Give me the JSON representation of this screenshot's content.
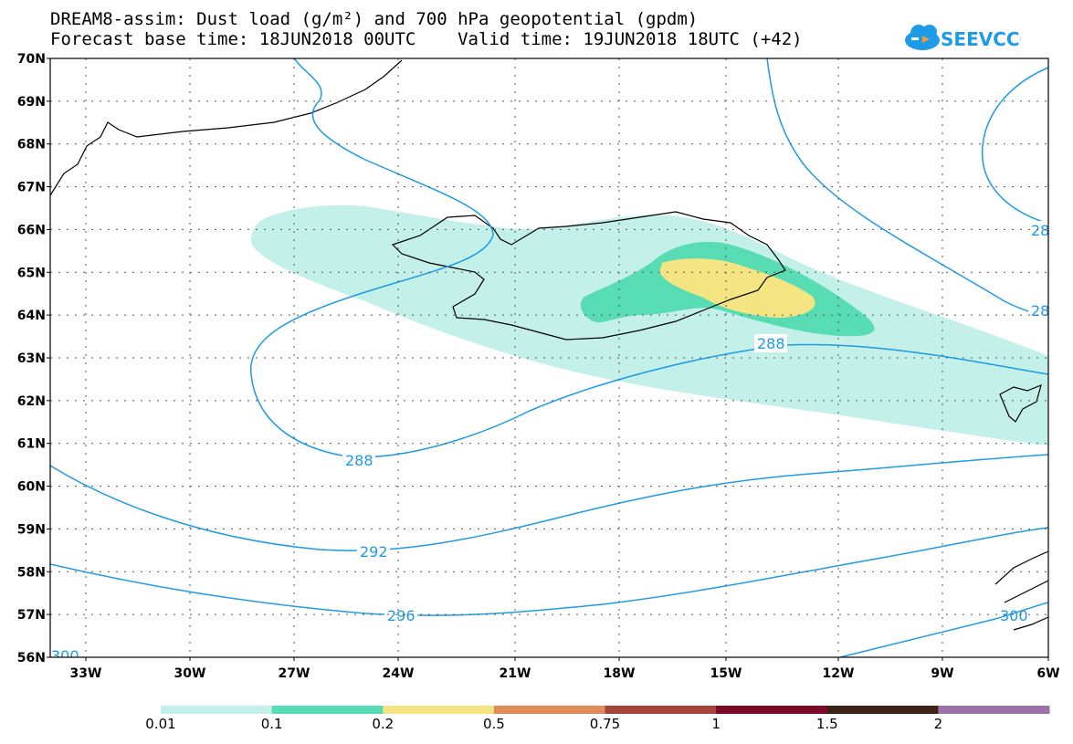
{
  "title": {
    "line1": "DREAM8-assim: Dust load (g/m²) and 700 hPa geopotential (gpdm)",
    "line2": "Forecast base time: 18JUN2018 00UTC    Valid time: 19JUN2018 18UTC (+42)"
  },
  "logo": {
    "text": "SEEVCCC",
    "icon": "cloud-icon",
    "color": "#1e9be6"
  },
  "axes": {
    "lat_labels": [
      "70N",
      "69N",
      "68N",
      "67N",
      "66N",
      "65N",
      "64N",
      "63N",
      "62N",
      "61N",
      "60N",
      "59N",
      "58N",
      "57N",
      "56N"
    ],
    "lon_labels": [
      "33W",
      "30W",
      "27W",
      "24W",
      "21W",
      "18W",
      "15W",
      "12W",
      "9W",
      "6W"
    ]
  },
  "contours": {
    "color": "#1e9be6",
    "labels": [
      "288",
      "288",
      "292",
      "296",
      "28",
      "28",
      "300",
      "300"
    ]
  },
  "dust_levels": {
    "colors": [
      "#c3f0e8",
      "#58dcb4",
      "#f5e482",
      "#e08c5a",
      "#a6443c",
      "#7a0a28",
      "#3c2212",
      "#9b72a6"
    ],
    "thresholds": [
      "0.01",
      "0.1",
      "0.2",
      "0.5",
      "0.75",
      "1",
      "1.5",
      "2"
    ]
  }
}
